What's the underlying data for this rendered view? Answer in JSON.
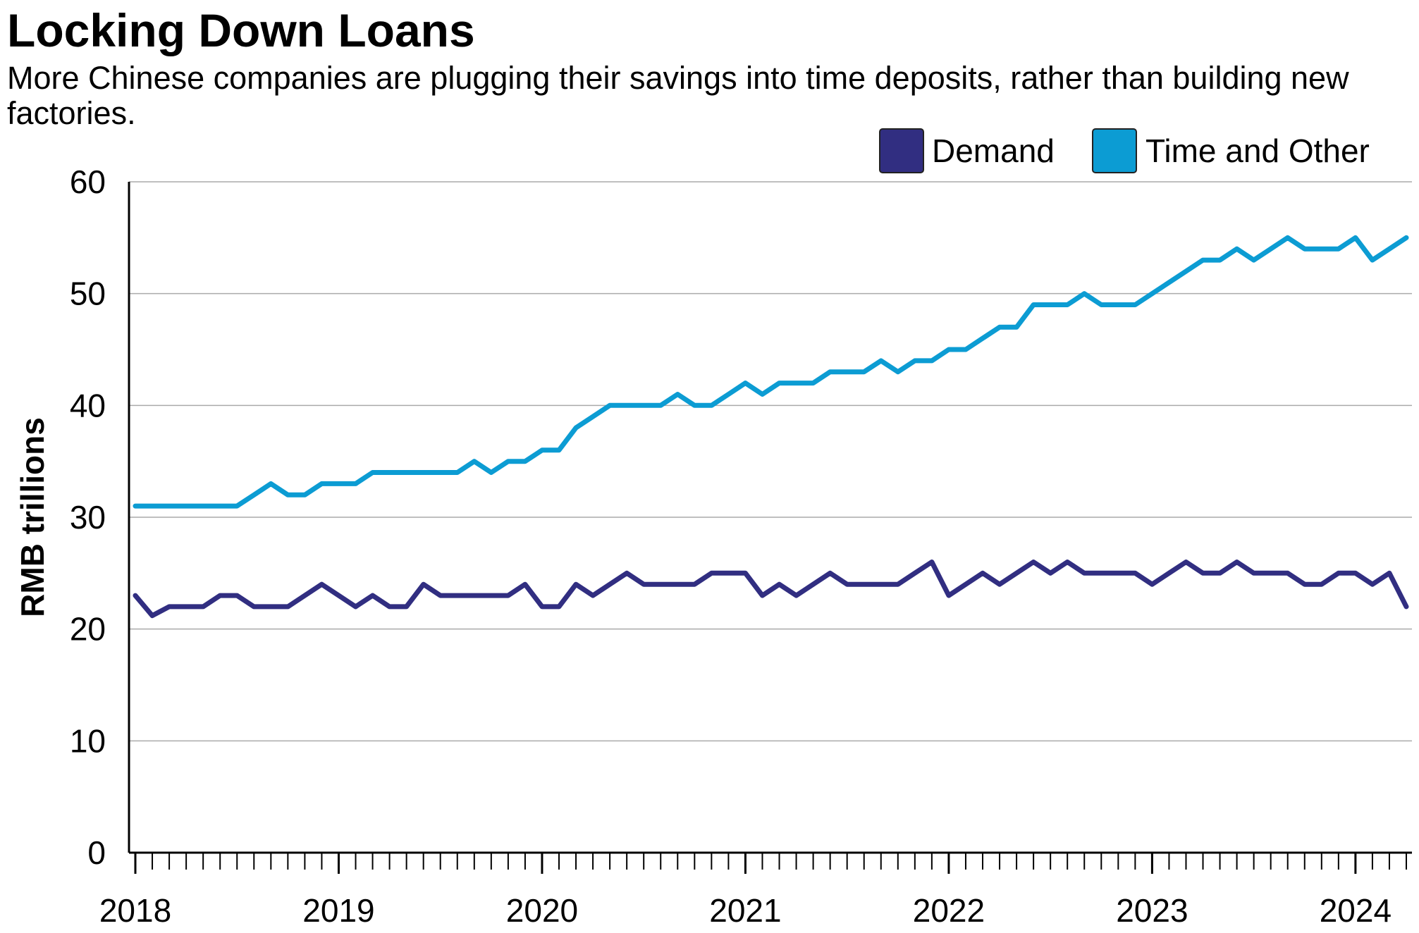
{
  "title": "Locking Down Loans",
  "subtitle": "More Chinese companies are plugging their savings into time deposits, rather than building new factories.",
  "chart_data": {
    "type": "line",
    "title": "Locking Down Loans",
    "subtitle": "More Chinese companies are plugging their savings into time deposits, rather than building new factories.",
    "xlabel": "",
    "ylabel": "RMB trillions",
    "ylim": [
      0,
      60
    ],
    "yticks": [
      0,
      10,
      20,
      30,
      40,
      50,
      60
    ],
    "xticks": [
      "2018",
      "2019",
      "2020",
      "2021",
      "2022",
      "2023",
      "2024"
    ],
    "xlim": [
      "2018-01",
      "2024-04"
    ],
    "grid": true,
    "legend_position": "top-right",
    "x": [
      "2018-01",
      "2018-02",
      "2018-03",
      "2018-04",
      "2018-05",
      "2018-06",
      "2018-07",
      "2018-08",
      "2018-09",
      "2018-10",
      "2018-11",
      "2018-12",
      "2019-01",
      "2019-02",
      "2019-03",
      "2019-04",
      "2019-05",
      "2019-06",
      "2019-07",
      "2019-08",
      "2019-09",
      "2019-10",
      "2019-11",
      "2019-12",
      "2020-01",
      "2020-02",
      "2020-03",
      "2020-04",
      "2020-05",
      "2020-06",
      "2020-07",
      "2020-08",
      "2020-09",
      "2020-10",
      "2020-11",
      "2020-12",
      "2021-01",
      "2021-02",
      "2021-03",
      "2021-04",
      "2021-05",
      "2021-06",
      "2021-07",
      "2021-08",
      "2021-09",
      "2021-10",
      "2021-11",
      "2021-12",
      "2022-01",
      "2022-02",
      "2022-03",
      "2022-04",
      "2022-05",
      "2022-06",
      "2022-07",
      "2022-08",
      "2022-09",
      "2022-10",
      "2022-11",
      "2022-12",
      "2023-01",
      "2023-02",
      "2023-03",
      "2023-04",
      "2023-05",
      "2023-06",
      "2023-07",
      "2023-08",
      "2023-09",
      "2023-10",
      "2023-11",
      "2023-12",
      "2024-01",
      "2024-02",
      "2024-03",
      "2024-04"
    ],
    "series": [
      {
        "name": "Demand",
        "color": "#312e81",
        "values": [
          23,
          21.2,
          22,
          22,
          22,
          23,
          23,
          22,
          22,
          22,
          23,
          24,
          23,
          22,
          23,
          22,
          22,
          24,
          23,
          23,
          23,
          23,
          23,
          24,
          22,
          22,
          24,
          23,
          24,
          25,
          24,
          24,
          24,
          24,
          25,
          25,
          25,
          23,
          24,
          23,
          24,
          25,
          24,
          24,
          24,
          24,
          25,
          26,
          23,
          24,
          25,
          24,
          25,
          26,
          25,
          26,
          25,
          25,
          25,
          25,
          24,
          25,
          26,
          25,
          25,
          26,
          25,
          25,
          25,
          24,
          24,
          25,
          25,
          24,
          25,
          22
        ]
      },
      {
        "name": "Time and Other",
        "color": "#0c9cd3",
        "values": [
          31,
          31,
          31,
          31,
          31,
          31,
          31,
          32,
          33,
          32,
          32,
          33,
          33,
          33,
          34,
          34,
          34,
          34,
          34,
          34,
          35,
          34,
          35,
          35,
          36,
          36,
          38,
          39,
          40,
          40,
          40,
          40,
          41,
          40,
          40,
          41,
          42,
          41,
          42,
          42,
          42,
          43,
          43,
          43,
          44,
          43,
          44,
          44,
          45,
          45,
          46,
          47,
          47,
          49,
          49,
          49,
          50,
          49,
          49,
          49,
          50,
          51,
          52,
          53,
          53,
          54,
          53,
          54,
          55,
          54,
          54,
          54,
          55,
          53,
          54,
          55
        ]
      }
    ]
  }
}
